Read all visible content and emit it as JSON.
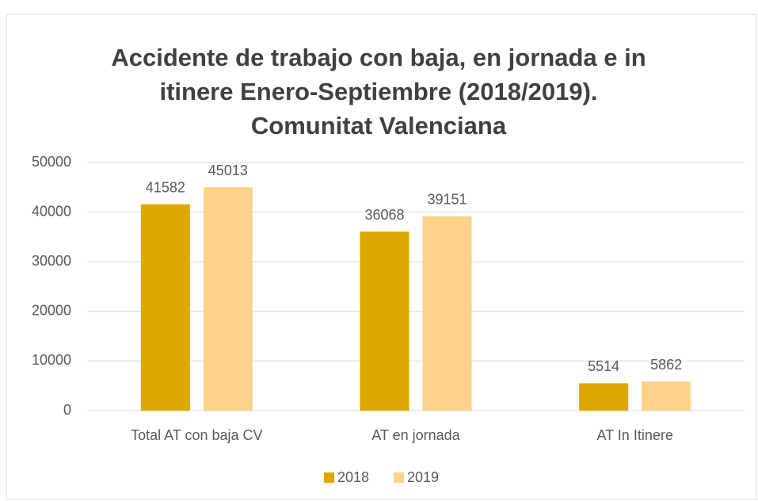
{
  "chart_data": {
    "type": "bar",
    "title": [
      "Accidente de trabajo con baja, en jornada e in",
      "itinere Enero-Septiembre (2018/2019).",
      "Comunitat Valenciana"
    ],
    "categories": [
      "Total AT con baja CV",
      "AT en jornada",
      "AT In Itinere"
    ],
    "series": [
      {
        "name": "2018",
        "color": "#dea700",
        "values": [
          41582,
          36068,
          5514
        ]
      },
      {
        "name": "2019",
        "color": "#ffd28c",
        "values": [
          45013,
          39151,
          5862
        ]
      }
    ],
    "ylim": [
      0,
      50000
    ],
    "yticks": [
      0,
      10000,
      20000,
      30000,
      40000,
      50000
    ],
    "grid": true,
    "legend": "bottom"
  }
}
